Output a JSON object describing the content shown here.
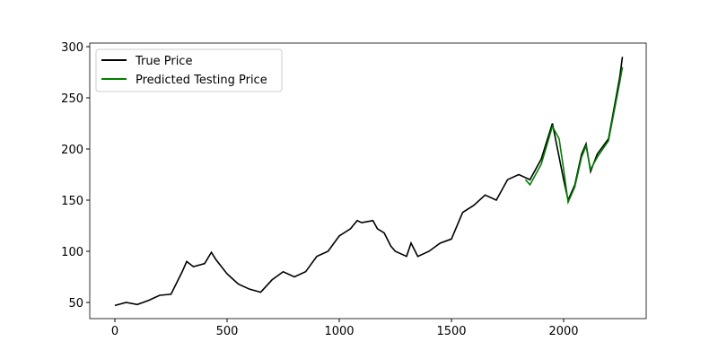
{
  "chart_data": {
    "type": "line",
    "series": [
      {
        "name": "True Price",
        "color": "#000000",
        "x": [
          0,
          50,
          100,
          150,
          200,
          250,
          300,
          320,
          350,
          400,
          430,
          450,
          500,
          550,
          600,
          650,
          700,
          750,
          800,
          850,
          900,
          950,
          1000,
          1050,
          1080,
          1100,
          1150,
          1170,
          1200,
          1230,
          1250,
          1300,
          1320,
          1350,
          1400,
          1450,
          1500,
          1550,
          1600,
          1650,
          1700,
          1750,
          1800,
          1850,
          1900,
          1950,
          2000,
          2020,
          2050,
          2080,
          2100,
          2120,
          2150,
          2200,
          2250,
          2262
        ],
        "values": [
          47,
          50,
          48,
          52,
          57,
          58,
          80,
          90,
          85,
          88,
          99,
          92,
          78,
          68,
          63,
          60,
          72,
          80,
          75,
          80,
          95,
          100,
          115,
          122,
          130,
          128,
          130,
          122,
          118,
          105,
          100,
          95,
          108,
          95,
          100,
          108,
          112,
          138,
          145,
          155,
          150,
          170,
          175,
          170,
          190,
          225,
          170,
          150,
          165,
          195,
          205,
          178,
          195,
          210,
          270,
          290
        ]
      },
      {
        "name": "Predicted Testing Price",
        "color": "#008000",
        "x": [
          1830,
          1850,
          1900,
          1950,
          1980,
          2000,
          2020,
          2050,
          2080,
          2100,
          2120,
          2150,
          2200,
          2250,
          2262
        ],
        "values": [
          170,
          165,
          185,
          222,
          210,
          180,
          148,
          163,
          192,
          203,
          180,
          192,
          208,
          265,
          280
        ]
      }
    ],
    "xlim": [
      -112,
      2368
    ],
    "xticks": [
      0,
      500,
      1000,
      1500,
      2000
    ],
    "ylim": [
      34.2,
      303.5
    ],
    "yticks": [
      50,
      100,
      150,
      200,
      250,
      300
    ],
    "legend": "upper left"
  }
}
